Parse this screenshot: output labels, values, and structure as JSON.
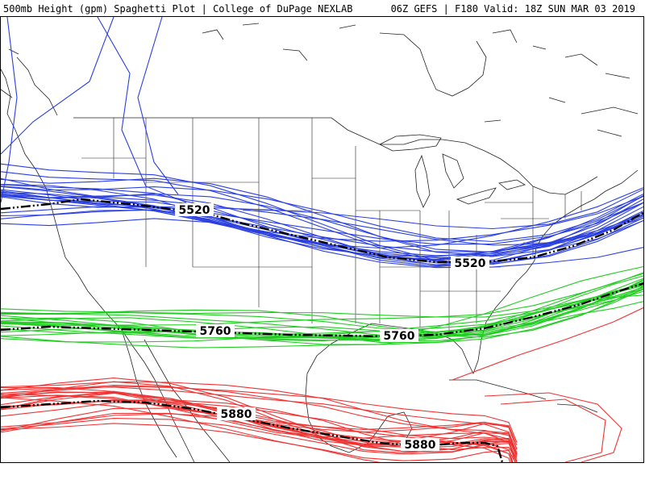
{
  "header": {
    "left": "500mb Height (gpm) Spaghetti Plot | College of DuPage NEXLAB",
    "right": "06Z GEFS | F180 Valid: 18Z SUN MAR 03 2019"
  },
  "colors": {
    "background": "#ffffff",
    "map_lines": "#222222",
    "contour_5520": "#2b3fe0",
    "contour_5760": "#22cc22",
    "contour_5880": "#ee3333",
    "ensemble_mean": "#000000"
  },
  "chart_data": {
    "type": "map",
    "levels": [
      {
        "level": "5520",
        "label": "5520",
        "color": "#2b3fe0"
      },
      {
        "level": "5760",
        "label": "5760",
        "color": "#22cc22"
      },
      {
        "level": "5880",
        "label": "5880",
        "color": "#ee3333"
      }
    ],
    "mean_labels": [
      "5520",
      "5520",
      "5760",
      "5760",
      "5880",
      "5880"
    ]
  }
}
